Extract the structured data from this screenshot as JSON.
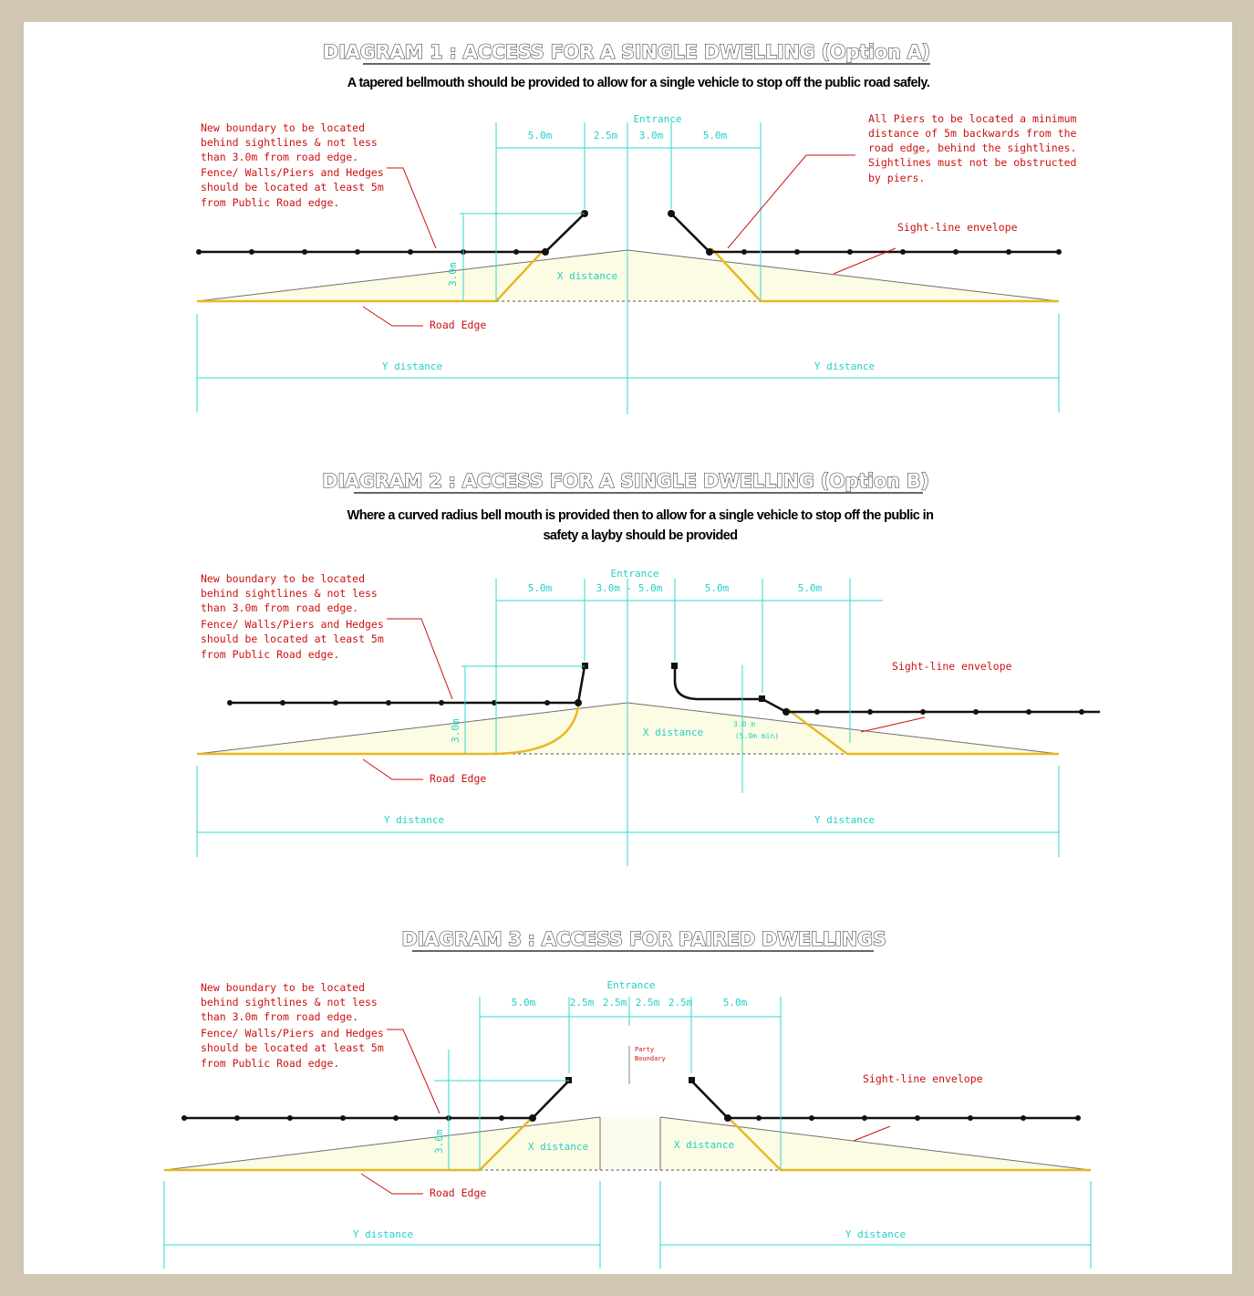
{
  "diagrams": [
    {
      "title": "DIAGRAM 1 : ACCESS FOR A SINGLE DWELLING (Option A)",
      "subtitle": "A tapered bellmouth should be provided to allow for a single vehicle to stop off the public road safely.",
      "boundary_note": [
        "New boundary to be located",
        "behind sightlines & not less",
        "than 3.0m from road edge.",
        "Fence/ Walls/Piers and Hedges",
        "should be located at least 5m",
        "from Public Road edge."
      ],
      "piers_note": [
        "All Piers to be located a minimum",
        "distance of 5m backwards from the",
        "road edge, behind the sightlines.",
        "Sightlines must not be obstructed",
        "by piers."
      ],
      "entrance_label": "Entrance",
      "dims": [
        "5.0m",
        "2.5m",
        "3.0m",
        "5.0m"
      ],
      "sight_line_label": "Sight-line envelope",
      "x_distance": "X distance",
      "road_edge": "Road Edge",
      "y_distance_left": "Y distance",
      "y_distance_right": "Y distance",
      "setback_label": "3.0m"
    },
    {
      "title": "DIAGRAM 2 : ACCESS FOR A SINGLE DWELLING (Option B)",
      "subtitle_lines": [
        "Where a curved radius bell mouth is provided then to allow for a single vehicle to stop off the public in",
        "safety a layby should be provided"
      ],
      "boundary_note": [
        "New boundary to be located",
        "behind sightlines & not less",
        "than 3.0m from road edge.",
        "Fence/ Walls/Piers and Hedges",
        "should be located at least 5m",
        "from Public Road edge."
      ],
      "entrance_label": "Entrance",
      "dims": [
        "5.0m",
        "3.0m - 5.0m",
        "5.0m",
        "5.0m"
      ],
      "sight_line_label": "Sight-line envelope",
      "x_distance": "X distance",
      "layby_dim": [
        "3.0 m",
        "(5.0m min)"
      ],
      "road_edge": "Road Edge",
      "y_distance_left": "Y distance",
      "y_distance_right": "Y distance",
      "setback_label": "3.0m"
    },
    {
      "title": "DIAGRAM 3 : ACCESS FOR PAIRED DWELLINGS",
      "boundary_note": [
        "New boundary to be located",
        "behind sightlines & not less",
        "than 3.0m from road edge.",
        "Fence/ Walls/Piers and Hedges",
        "should be located at least 5m",
        "from Public Road edge."
      ],
      "entrance_label": "Entrance",
      "dims": [
        "5.0m",
        "2.5m",
        "2.5m",
        "2.5m",
        "2.5m",
        "5.0m"
      ],
      "centre_note": [
        "Party",
        "Boundary"
      ],
      "sight_line_label": "Sight-line envelope",
      "x_distance_left": "X distance",
      "x_distance_right": "X distance",
      "road_edge": "Road Edge",
      "y_distance_left": "Y distance",
      "y_distance_right": "Y distance",
      "setback_label": "3.0m"
    }
  ],
  "colors": {
    "road_edge": "#e8b820",
    "dimension": "#2fd8cc",
    "note": "#cc1111",
    "fence": "#111111",
    "frame": "#cfc6b4"
  }
}
